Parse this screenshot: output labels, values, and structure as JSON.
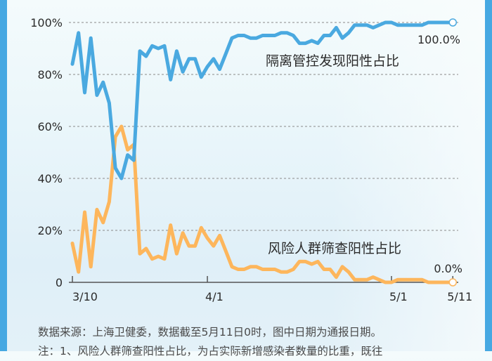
{
  "chart_data": {
    "type": "line",
    "title": "",
    "xlabel": "",
    "ylabel": "",
    "ylim": [
      0,
      100
    ],
    "y_ticks": [
      "0",
      "20%",
      "40%",
      "60%",
      "80%",
      "100%"
    ],
    "x_ticks": [
      "3/10",
      "4/1",
      "5/1",
      "5/11"
    ],
    "grid": "horizontal dashed",
    "x_start": "3/10",
    "x_end": "5/11",
    "series": [
      {
        "name": "隔离管控发现阳性占比",
        "color": "#4aa9e0",
        "end_label": "100.0%",
        "values": [
          84,
          96,
          73,
          94,
          72,
          77,
          69,
          44,
          40,
          49,
          47,
          89,
          87,
          91,
          90,
          91,
          78,
          89,
          81,
          86,
          86,
          79,
          83,
          86,
          82,
          88,
          94,
          95,
          95,
          94,
          94,
          95,
          95,
          95,
          96,
          96,
          95,
          92,
          92,
          93,
          92,
          95,
          95,
          98,
          94,
          96,
          99,
          99,
          99,
          98,
          99,
          100,
          100,
          99,
          99,
          99,
          99,
          99,
          100,
          100,
          100,
          100,
          100
        ]
      },
      {
        "name": "风险人群筛查阳性占比",
        "color": "#fdb65c",
        "end_label": "0.0%",
        "values": [
          15,
          4,
          27,
          6,
          28,
          23,
          31,
          56,
          60,
          51,
          53,
          11,
          13,
          9,
          10,
          9,
          22,
          11,
          19,
          14,
          14,
          21,
          17,
          14,
          18,
          12,
          6,
          5,
          5,
          6,
          6,
          5,
          5,
          5,
          4,
          4,
          5,
          8,
          8,
          7,
          8,
          5,
          5,
          2,
          6,
          4,
          1,
          1,
          1,
          2,
          1,
          0,
          0,
          1,
          1,
          1,
          1,
          1,
          0,
          0,
          0,
          0,
          0
        ]
      }
    ]
  },
  "labels": {
    "series_a": "隔离管控发现阳性占比",
    "series_b": "风险人群筛查阳性占比",
    "end_a": "100.0%",
    "end_b": "0.0%"
  },
  "axis": {
    "y": [
      "0",
      "20%",
      "40%",
      "60%",
      "80%",
      "100%"
    ],
    "x": [
      "3/10",
      "4/1",
      "5/1",
      "5/11"
    ]
  },
  "notes": {
    "source": "数据来源：上海卫健委，数据截至5月11日0时，图中日期为通报日期。",
    "note1": "注：1、风险人群筛查阳性占比，为占实际新增感染者数量的比重，既往"
  }
}
